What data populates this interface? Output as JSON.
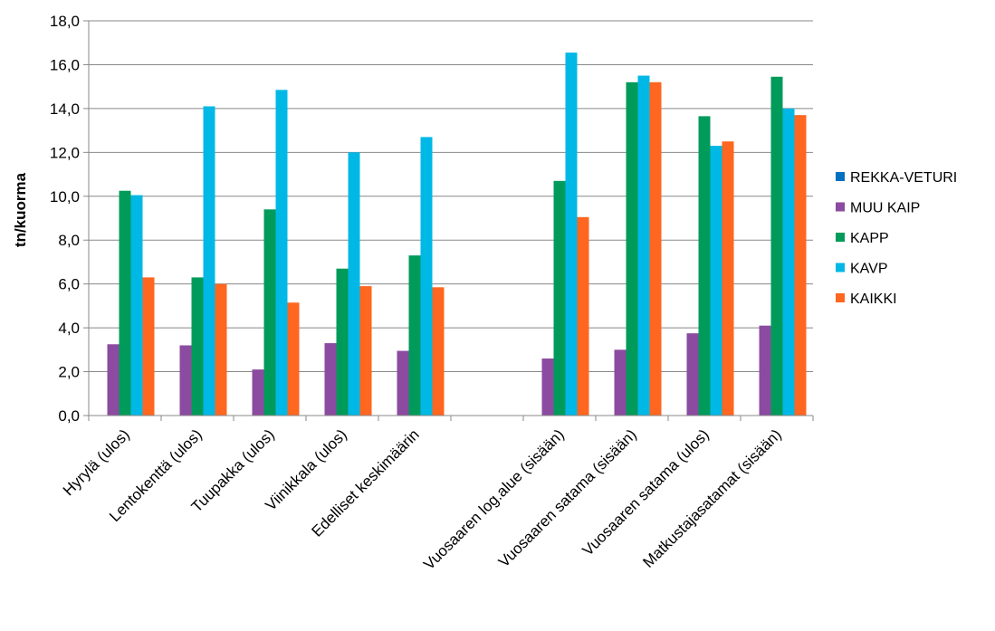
{
  "chart_data": {
    "type": "bar",
    "title": "",
    "xlabel": "",
    "ylabel": "tn/kuorma",
    "ylim": [
      0,
      18
    ],
    "yticks": [
      "0,0",
      "2,0",
      "4,0",
      "6,0",
      "8,0",
      "10,0",
      "12,0",
      "14,0",
      "16,0",
      "18,0"
    ],
    "grid": true,
    "legend_position": "right",
    "categories": [
      "Hyrylä (ulos)",
      "Lentokenttä (ulos)",
      "Tuupakka (ulos)",
      "Viinikkala (ulos)",
      "Edelliset keskimäärin",
      "",
      "Vuosaaren log.alue (sisään)",
      "Vuosaaren satama (sisään)",
      "Vuosaaren satama (ulos)",
      "Matkustajasatamat (sisään)"
    ],
    "series": [
      {
        "name": "REKKA-VETURI",
        "color": "#0070C0",
        "values": [
          null,
          null,
          null,
          null,
          null,
          null,
          null,
          null,
          null,
          null
        ]
      },
      {
        "name": "MUU KAIP",
        "color": "#8B4BA0",
        "values": [
          3.25,
          3.2,
          2.1,
          3.3,
          2.95,
          null,
          2.6,
          3.0,
          3.75,
          4.1
        ]
      },
      {
        "name": "KAPP",
        "color": "#009B5A",
        "values": [
          10.25,
          6.3,
          9.4,
          6.7,
          7.3,
          null,
          10.7,
          15.2,
          13.65,
          15.45
        ]
      },
      {
        "name": "KAVP",
        "color": "#00B8E6",
        "values": [
          10.05,
          14.1,
          14.85,
          12.0,
          12.7,
          null,
          16.55,
          15.5,
          12.3,
          14.0
        ]
      },
      {
        "name": "KAIKKI",
        "color": "#FF6620",
        "values": [
          6.3,
          6.0,
          5.15,
          5.9,
          5.85,
          null,
          9.05,
          15.2,
          12.5,
          13.7
        ]
      }
    ]
  }
}
